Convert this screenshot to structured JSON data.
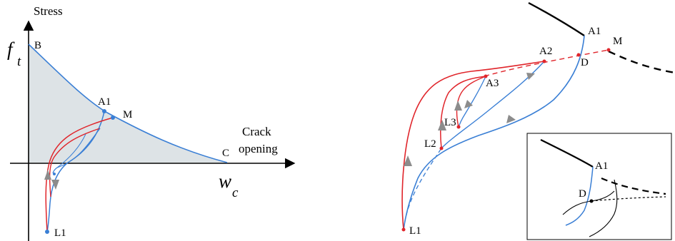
{
  "left_panel": {
    "y_axis_title": "Stress",
    "y_axis_symbol": "f",
    "y_axis_symbol_sub": "t",
    "x_axis_title_line1": "Crack",
    "x_axis_title_line2": "opening",
    "x_axis_symbol": "w",
    "x_axis_symbol_sub": "c",
    "point_labels": {
      "B": "B",
      "C": "C",
      "A1": "A1",
      "M": "M",
      "L1": "L1"
    }
  },
  "right_panel": {
    "point_labels": {
      "A1": "A1",
      "M": "M",
      "A2": "A2",
      "D": "D",
      "A3": "A3",
      "L3": "L3",
      "L2": "L2",
      "L1": "L1"
    },
    "inset_labels": {
      "A1": "A1",
      "D": "D"
    }
  },
  "colors": {
    "envelope_blue": "#3a7fd5",
    "reloading_red": "#e0252b",
    "region_fill": "#dde3e6",
    "arrow_gray": "#8c8c8c",
    "black": "#000000"
  }
}
